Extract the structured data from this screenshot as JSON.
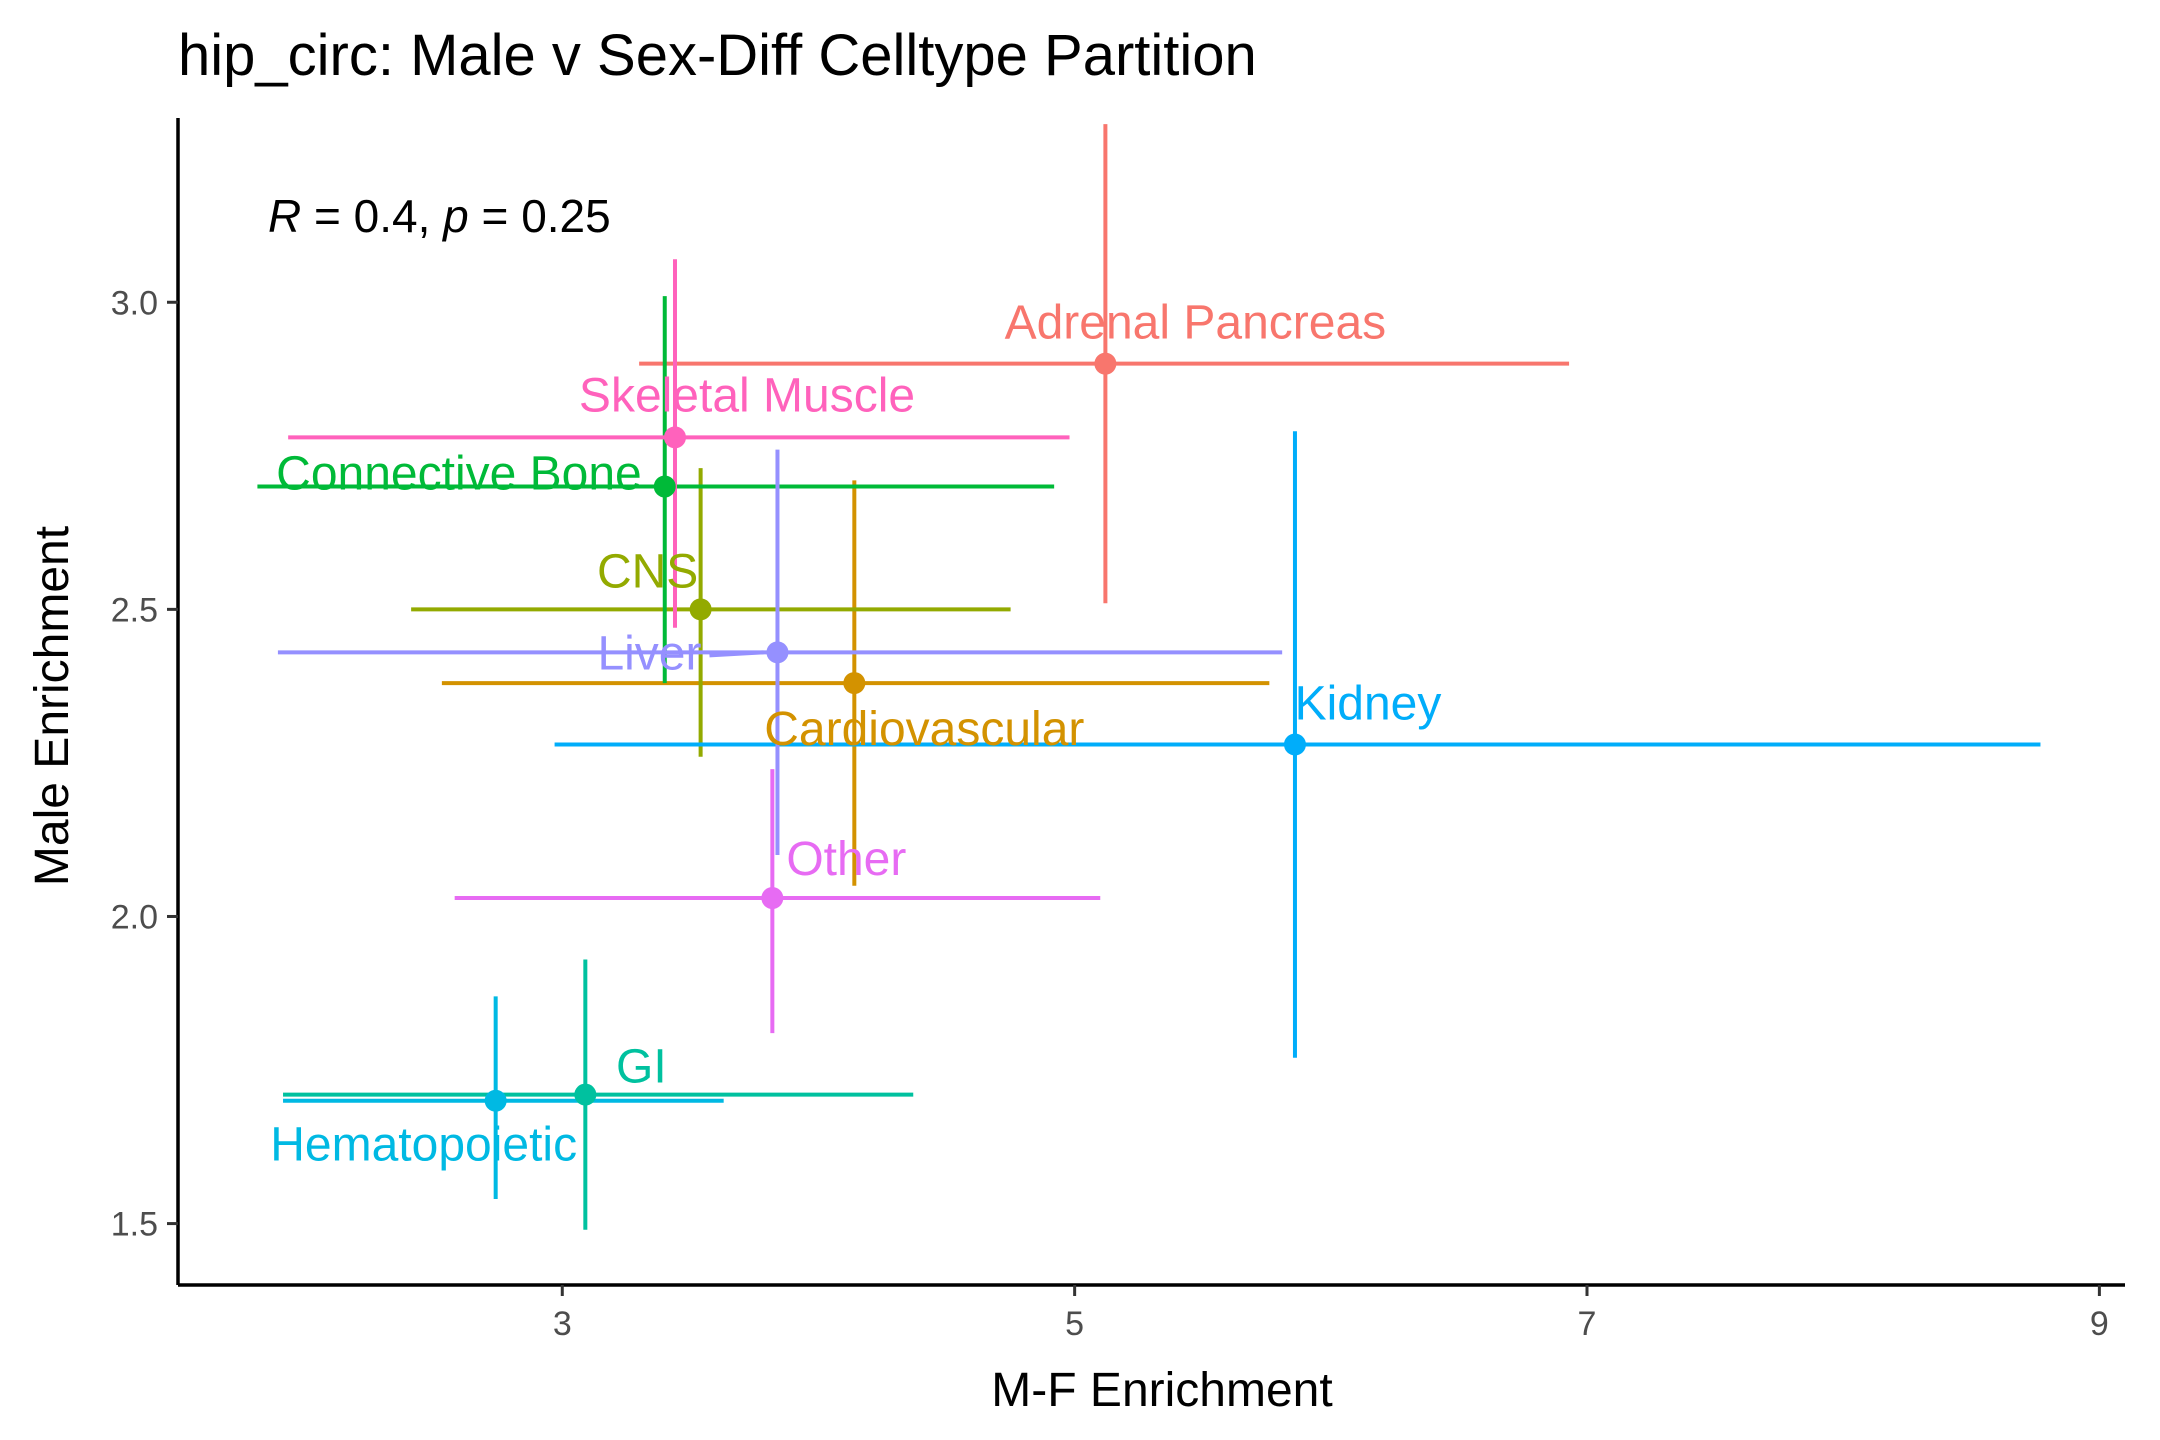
{
  "chart_data": {
    "type": "scatter",
    "title": "hip_circ: Male v Sex-Diff Celltype Partition",
    "xlabel": "M-F Enrichment",
    "ylabel": "Male Enrichment",
    "xlim": [
      1.5,
      9.1
    ],
    "ylim": [
      1.4,
      3.3
    ],
    "x_ticks": [
      3,
      5,
      7,
      9
    ],
    "y_ticks": [
      1.5,
      2.0,
      2.5,
      3.0
    ],
    "y_tick_labels": [
      "1.5",
      "2.0",
      "2.5",
      "3.0"
    ],
    "grid": false,
    "legend": "none",
    "annotation": {
      "r_sym": "R",
      "r_text": " = 0.4, ",
      "p_sym": "p",
      "p_text": " = 0.25"
    },
    "points": [
      {
        "label": "Adrenal Pancreas",
        "color": "#F8766D",
        "x": 5.12,
        "y": 2.9,
        "xmin": 3.3,
        "xmax": 6.93,
        "ymin": 2.51,
        "ymax": 3.29
      },
      {
        "label": "Cardiovascular",
        "color": "#D39200",
        "x": 4.14,
        "y": 2.38,
        "xmin": 2.53,
        "xmax": 5.76,
        "ymin": 2.05,
        "ymax": 2.71
      },
      {
        "label": "CNS",
        "color": "#93AA00",
        "x": 3.54,
        "y": 2.5,
        "xmin": 2.41,
        "xmax": 4.75,
        "ymin": 2.26,
        "ymax": 2.73
      },
      {
        "label": "Connective Bone",
        "color": "#00BA38",
        "x": 3.4,
        "y": 2.7,
        "xmin": 1.81,
        "xmax": 4.92,
        "ymin": 2.38,
        "ymax": 3.01
      },
      {
        "label": "GI",
        "color": "#00C19F",
        "x": 3.09,
        "y": 1.71,
        "xmin": 1.91,
        "xmax": 4.37,
        "ymin": 1.49,
        "ymax": 1.93
      },
      {
        "label": "Hematopoietic",
        "color": "#00B9E3",
        "x": 2.74,
        "y": 1.7,
        "xmin": 1.91,
        "xmax": 3.63,
        "ymin": 1.54,
        "ymax": 1.87
      },
      {
        "label": "Kidney",
        "color": "#00ADFA",
        "x": 5.86,
        "y": 2.28,
        "xmin": 2.97,
        "xmax": 8.77,
        "ymin": 1.77,
        "ymax": 2.79
      },
      {
        "label": "Liver",
        "color": "#9590FF",
        "x": 3.84,
        "y": 2.43,
        "xmin": 1.89,
        "xmax": 5.81,
        "ymin": 2.1,
        "ymax": 2.76
      },
      {
        "label": "Other",
        "color": "#E76BF3",
        "x": 3.82,
        "y": 2.03,
        "xmin": 2.58,
        "xmax": 5.1,
        "ymin": 1.81,
        "ymax": 2.24
      },
      {
        "label": "Skeletal Muscle",
        "color": "#FF62BC",
        "x": 3.44,
        "y": 2.78,
        "xmin": 1.93,
        "xmax": 4.98,
        "ymin": 2.47,
        "ymax": 3.07
      }
    ]
  }
}
